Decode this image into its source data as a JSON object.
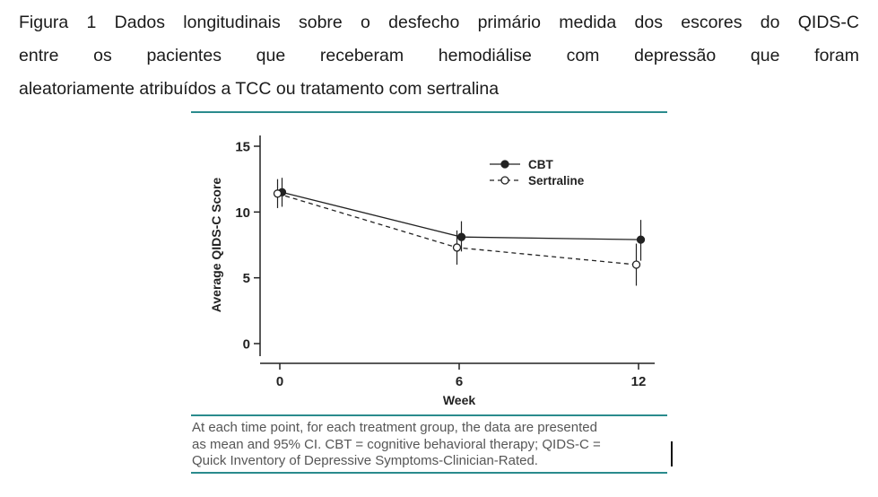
{
  "document": {
    "title_lines": [
      "Figura 1 Dados longitudinais sobre o desfecho primário medida dos escores do QIDS-C",
      "entre os pacientes que receberam hemodiálise com depressão que foram",
      "aleatoriamente atribuídos a TCC ou tratamento com sertralina"
    ],
    "caption_lines": [
      "At each time point, for each treatment group, the data are presented",
      "as mean and 95% CI. CBT = cognitive behavioral therapy; QIDS-C =",
      "Quick Inventory of Depressive Symptoms-Clinician-Rated."
    ]
  },
  "colors": {
    "rule_teal": "#2A8B8D",
    "chart_ink": "#222222",
    "title_text": "#1b1b1b",
    "caption_text": "#565656"
  },
  "chart_data": {
    "type": "line",
    "title": "",
    "xlabel": "Week",
    "ylabel": "Average QIDS-C Score",
    "x": [
      0,
      6,
      12
    ],
    "xlim": [
      0,
      12
    ],
    "ylim": [
      0,
      15
    ],
    "xticks": [
      0,
      6,
      12
    ],
    "yticks": [
      0,
      5,
      10,
      15
    ],
    "grid": false,
    "legend_position": "top-right",
    "error_bars": "95% CI",
    "series": [
      {
        "name": "CBT",
        "line": "solid",
        "marker": "filled-circle",
        "values": [
          11.5,
          8.1,
          7.9
        ],
        "ci_low": [
          10.4,
          7.0,
          6.3
        ],
        "ci_high": [
          12.6,
          9.3,
          9.4
        ]
      },
      {
        "name": "Sertraline",
        "line": "dashed",
        "marker": "open-circle",
        "values": [
          11.4,
          7.3,
          6.0
        ],
        "ci_low": [
          10.3,
          6.0,
          4.4
        ],
        "ci_high": [
          12.5,
          8.6,
          7.6
        ]
      }
    ]
  }
}
